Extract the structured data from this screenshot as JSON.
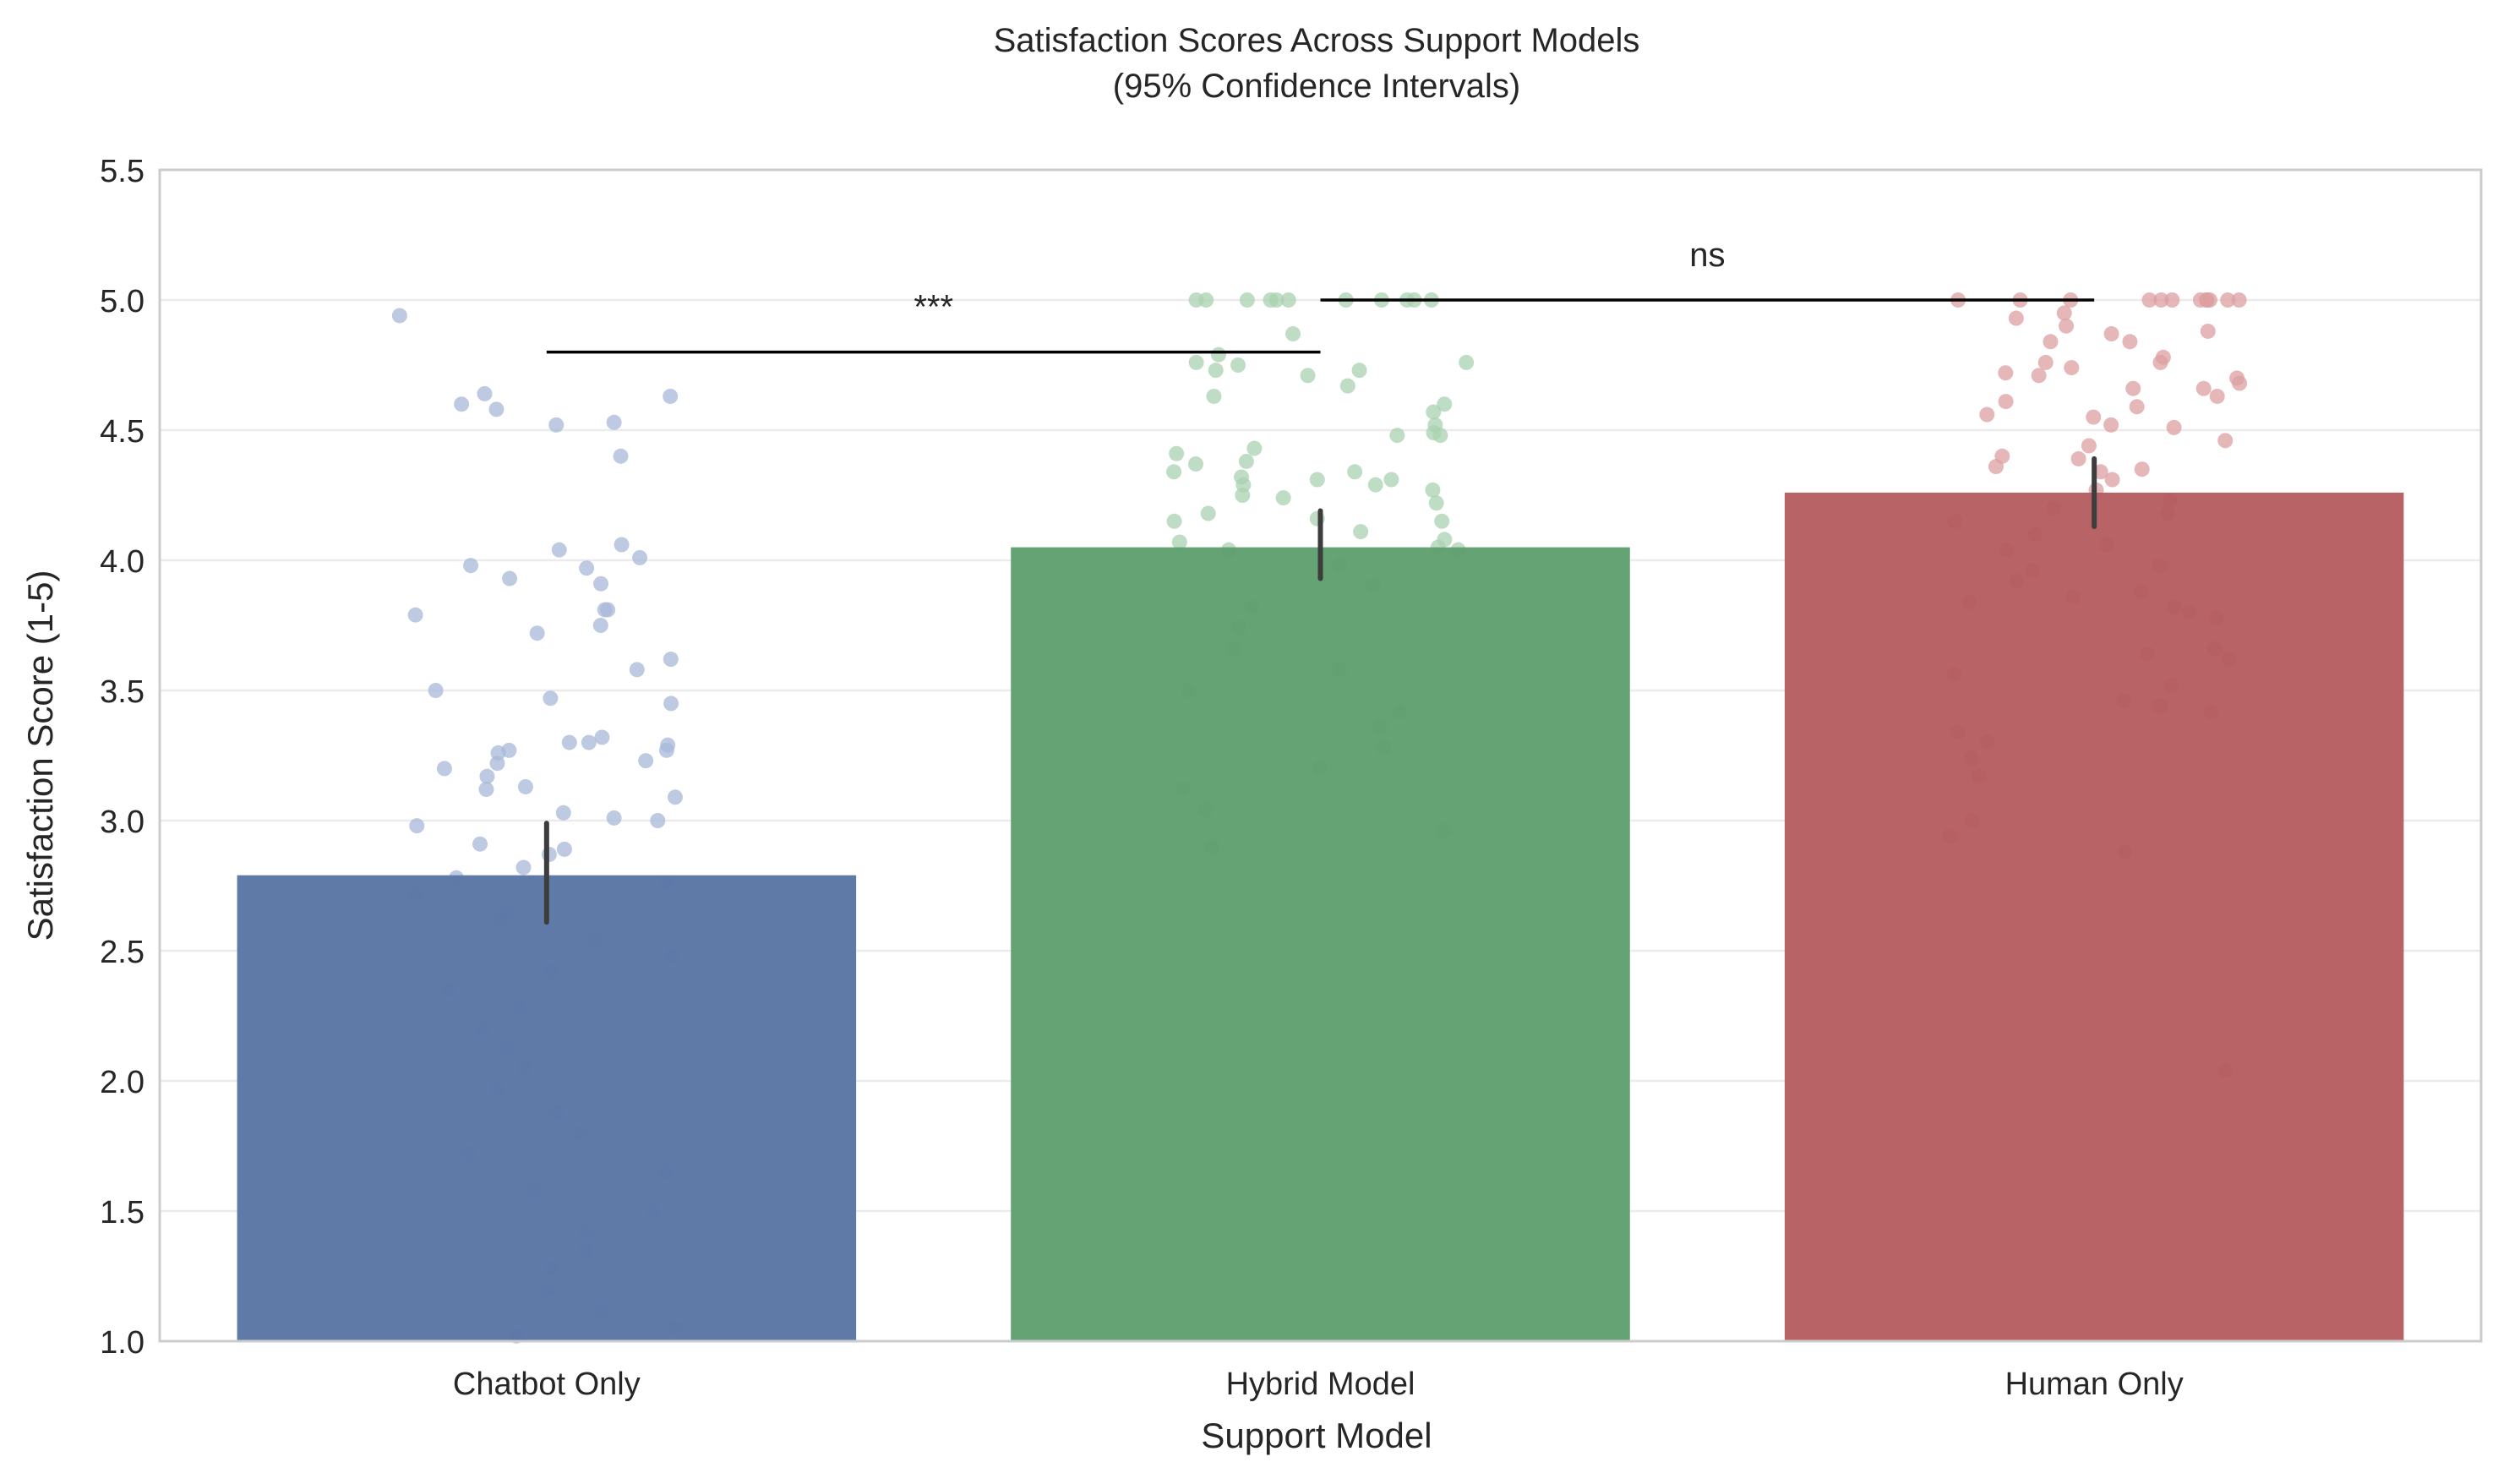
{
  "chart_data": {
    "type": "bar",
    "title": "Satisfaction Scores Across Support Models",
    "subtitle": "(95% Confidence Intervals)",
    "xlabel": "Support Model",
    "ylabel": "Satisfaction Score (1-5)",
    "ylim": [
      1.0,
      5.5
    ],
    "yticks": [
      "1.0",
      "1.5",
      "2.0",
      "2.5",
      "3.0",
      "3.5",
      "4.0",
      "4.5",
      "5.0",
      "5.5"
    ],
    "grid": "horizontal",
    "categories": [
      "Chatbot Only",
      "Hybrid Model",
      "Human Only"
    ],
    "values": [
      2.79,
      4.05,
      4.26
    ],
    "ci": [
      [
        2.61,
        2.99
      ],
      [
        3.93,
        4.19
      ],
      [
        4.13,
        4.39
      ]
    ],
    "colors": [
      "#5975a4",
      "#5f9e6e",
      "#b55d60"
    ],
    "point_colors": [
      "#a8b8d8",
      "#a9d2b0",
      "#dc9fa2"
    ],
    "points": [
      [
        4.94,
        4.63,
        4.64,
        4.6,
        4.53,
        4.52,
        4.58,
        4.4,
        4.06,
        4.04,
        3.91,
        3.97,
        4.01,
        3.98,
        3.93,
        3.81,
        3.81,
        3.79,
        3.75,
        3.72,
        3.62,
        3.58,
        3.5,
        3.47,
        3.45,
        3.32,
        3.3,
        3.3,
        3.29,
        3.27,
        3.27,
        3.26,
        3.23,
        3.22,
        3.2,
        3.17,
        3.13,
        3.12,
        3.09,
        3.03,
        3.01,
        3.0,
        2.98,
        2.91,
        2.89,
        2.87,
        2.82,
        2.78,
        2.76,
        2.72,
        2.65,
        2.62,
        2.55,
        2.48,
        2.42,
        2.35,
        2.28,
        2.2,
        2.12,
        2.05,
        1.97,
        1.88,
        1.8,
        1.72,
        1.65,
        1.58,
        1.5,
        1.42,
        1.35,
        1.28,
        1.2,
        1.12,
        1.05,
        1.02
      ],
      [
        5.0,
        5.0,
        5.0,
        5.0,
        5.0,
        5.0,
        5.0,
        5.0,
        5.0,
        5.0,
        5.0,
        4.87,
        4.79,
        4.76,
        4.76,
        4.75,
        4.73,
        4.73,
        4.71,
        4.67,
        4.63,
        4.6,
        4.57,
        4.52,
        4.49,
        4.48,
        4.48,
        4.43,
        4.41,
        4.38,
        4.37,
        4.34,
        4.34,
        4.32,
        4.31,
        4.31,
        4.29,
        4.29,
        4.27,
        4.25,
        4.24,
        4.22,
        4.18,
        4.16,
        4.15,
        4.15,
        4.11,
        4.08,
        4.07,
        4.05,
        4.04,
        4.04,
        3.98,
        3.9,
        3.82,
        3.74,
        3.66,
        3.58,
        3.5,
        3.42,
        3.36,
        3.28,
        3.2,
        3.12,
        3.04,
        2.96,
        2.9
      ],
      [
        5.0,
        5.0,
        5.0,
        5.0,
        5.0,
        5.0,
        5.0,
        5.0,
        5.0,
        5.0,
        5.0,
        5.0,
        4.95,
        4.93,
        4.9,
        4.88,
        4.87,
        4.84,
        4.84,
        4.78,
        4.76,
        4.76,
        4.74,
        4.72,
        4.71,
        4.7,
        4.68,
        4.66,
        4.66,
        4.63,
        4.61,
        4.59,
        4.56,
        4.55,
        4.52,
        4.51,
        4.46,
        4.44,
        4.4,
        4.39,
        4.36,
        4.35,
        4.34,
        4.31,
        4.27,
        4.23,
        4.2,
        4.18,
        4.15,
        4.1,
        4.06,
        4.04,
        3.98,
        3.96,
        3.92,
        3.88,
        3.86,
        3.84,
        3.82,
        3.8,
        3.78,
        3.66,
        3.64,
        3.62,
        3.56,
        3.52,
        3.46,
        3.44,
        3.42,
        3.34,
        3.3,
        3.24,
        3.17,
        3.0,
        2.94,
        2.88,
        2.04
      ]
    ],
    "significance": [
      {
        "from": 0,
        "to": 1,
        "label": "***",
        "y": 4.8
      },
      {
        "from": 1,
        "to": 2,
        "label": "ns",
        "y": 5.0
      }
    ]
  }
}
